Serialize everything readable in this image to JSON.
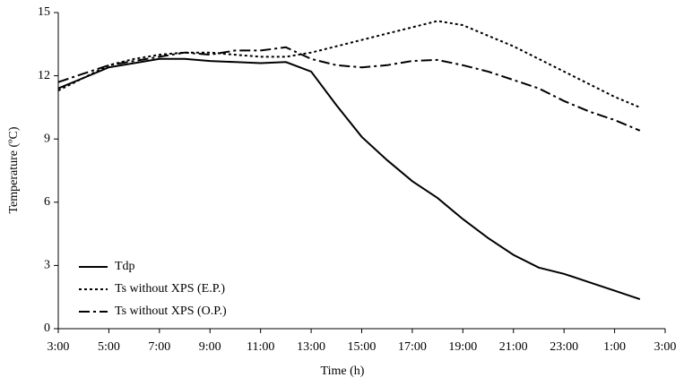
{
  "chart_data": {
    "type": "line",
    "x_label": "Time (h)",
    "y_label": "Temperature (ºC)",
    "categories": [
      "3:00",
      null,
      "5:00",
      null,
      "7:00",
      null,
      "9:00",
      null,
      "11:00",
      null,
      "13:00",
      null,
      "15:00",
      null,
      "17:00",
      null,
      "19:00",
      null,
      "21:00",
      null,
      "23:00",
      null,
      "1:00",
      null,
      "3:00"
    ],
    "ylim": [
      0,
      15
    ],
    "yticks": [
      0,
      3,
      6,
      9,
      12,
      15
    ],
    "series": [
      {
        "name": "Tdp",
        "color": "#000000",
        "dash": "solid",
        "values": [
          11.4,
          11.9,
          12.4,
          12.6,
          12.8,
          12.8,
          12.7,
          12.65,
          12.6,
          12.65,
          12.2,
          10.6,
          9.1,
          8.0,
          7.0,
          6.2,
          5.2,
          4.3,
          3.5,
          2.9,
          2.6,
          2.2,
          1.8,
          1.4,
          null
        ]
      },
      {
        "name": "Ts without XPS (E.P.)",
        "color": "#000000",
        "dash": "dotted",
        "values": [
          11.3,
          11.9,
          12.5,
          12.8,
          13.0,
          13.1,
          13.1,
          13.0,
          12.9,
          12.9,
          13.1,
          13.4,
          13.7,
          14.0,
          14.3,
          14.6,
          14.4,
          13.9,
          13.4,
          12.8,
          12.2,
          11.6,
          11.0,
          10.5,
          null
        ]
      },
      {
        "name": "Ts without XPS (O.P.)",
        "color": "#000000",
        "dash": "dashdot",
        "values": [
          11.7,
          12.1,
          12.5,
          12.7,
          12.9,
          13.1,
          13.0,
          13.2,
          13.2,
          13.35,
          12.8,
          12.5,
          12.4,
          12.5,
          12.7,
          12.75,
          12.5,
          12.2,
          11.8,
          11.4,
          10.8,
          10.3,
          9.9,
          9.4,
          null
        ]
      }
    ],
    "legend": "lower left"
  }
}
